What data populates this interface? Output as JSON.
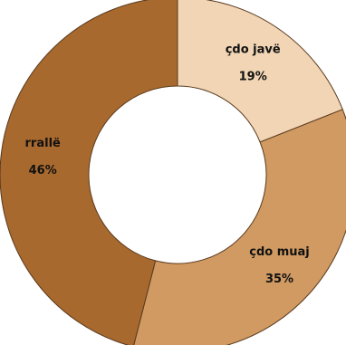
{
  "chart_data": {
    "type": "pie",
    "donut": true,
    "legend": "none",
    "categories": [
      "çdo javë",
      "çdo muaj",
      "rrallë"
    ],
    "values": [
      19,
      35,
      46
    ],
    "value_labels": [
      "19%",
      "35%",
      "46%"
    ],
    "colors": [
      "#f1d5b5",
      "#d09a62",
      "#a8692e"
    ],
    "border_color": "#5a3a1e"
  }
}
